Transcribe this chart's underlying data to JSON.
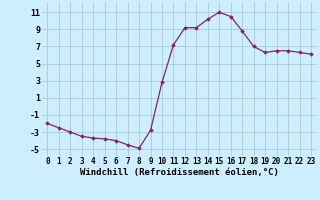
{
  "x": [
    0,
    1,
    2,
    3,
    4,
    5,
    6,
    7,
    8,
    9,
    10,
    11,
    12,
    13,
    14,
    15,
    16,
    17,
    18,
    19,
    20,
    21,
    22,
    23
  ],
  "y": [
    -2,
    -2.5,
    -3,
    -3.5,
    -3.7,
    -3.8,
    -4,
    -4.5,
    -4.9,
    -2.8,
    2.8,
    7.2,
    9.2,
    9.2,
    10.2,
    11.0,
    10.5,
    8.8,
    7.0,
    6.3,
    6.5,
    6.5,
    6.3,
    6.1
  ],
  "line_color": "#882266",
  "marker": "D",
  "marker_size": 1.8,
  "bg_color": "#cceeff",
  "grid_color": "#aacccc",
  "xlabel": "Windchill (Refroidissement éolien,°C)",
  "ylabel_ticks": [
    -5,
    -3,
    -1,
    1,
    3,
    5,
    7,
    9,
    11
  ],
  "xlim": [
    -0.5,
    23.5
  ],
  "ylim": [
    -5.8,
    12.2
  ],
  "xlabel_fontsize": 6.5,
  "tick_fontsize": 5.5,
  "ytick_fontsize": 6.0
}
